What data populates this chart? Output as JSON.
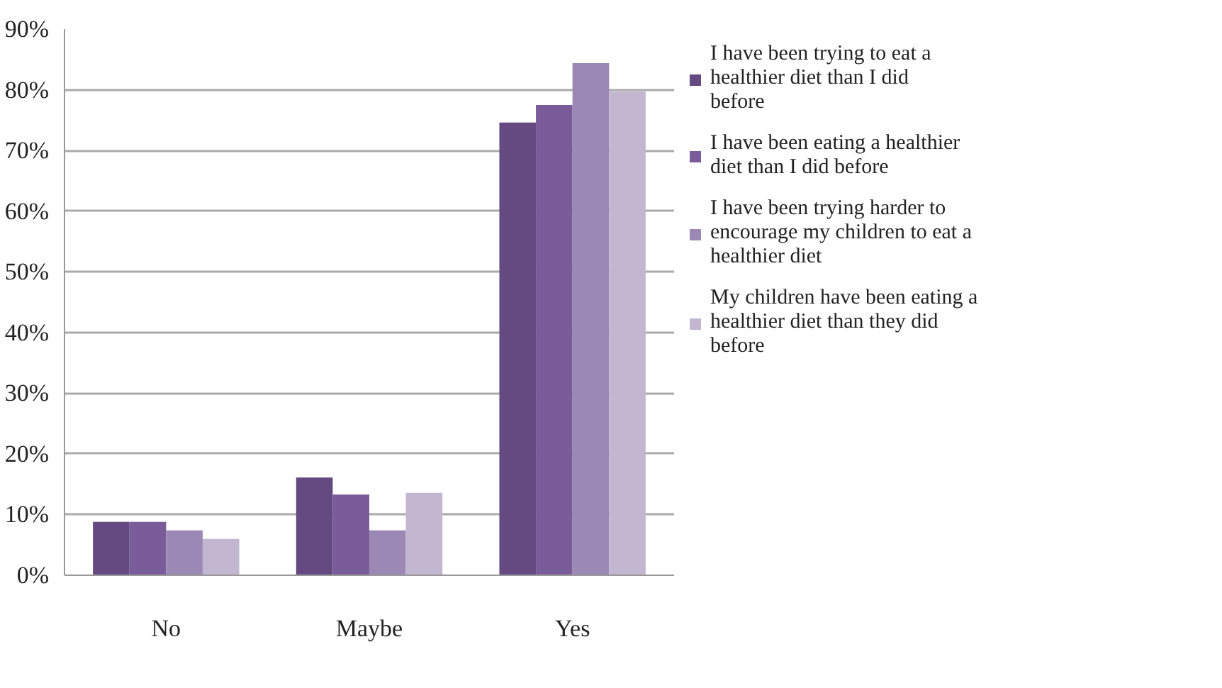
{
  "chart_data": {
    "type": "bar",
    "categories": [
      "No",
      "Maybe",
      "Yes"
    ],
    "series": [
      {
        "name": "I have been trying to eat a healthier diet than I did before",
        "color": "#654a82",
        "values": [
          8.8,
          16.1,
          74.6
        ]
      },
      {
        "name": "I have been eating a healthier diet than I did before",
        "color": "#7a5c9a",
        "values": [
          8.8,
          13.3,
          77.5
        ]
      },
      {
        "name": "I have been trying harder to encourage my children to eat a healthier diet",
        "color": "#9c88b4",
        "values": [
          7.4,
          7.4,
          84.4
        ]
      },
      {
        "name": "My children have been eating a healthier diet than they did before",
        "color": "#c2b6d0",
        "values": [
          6.0,
          13.6,
          79.7
        ]
      }
    ],
    "ylim": [
      0,
      90
    ],
    "yticks": [
      {
        "value": 0,
        "label": "0%"
      },
      {
        "value": 10,
        "label": "10%"
      },
      {
        "value": 20,
        "label": "20%"
      },
      {
        "value": 30,
        "label": "30%"
      },
      {
        "value": 40,
        "label": "40%"
      },
      {
        "value": 50,
        "label": "50%"
      },
      {
        "value": 60,
        "label": "60%"
      },
      {
        "value": 70,
        "label": "70%"
      },
      {
        "value": 80,
        "label": "80%"
      },
      {
        "value": 90,
        "label": "90%"
      }
    ],
    "grid": "y",
    "legend": "right"
  }
}
